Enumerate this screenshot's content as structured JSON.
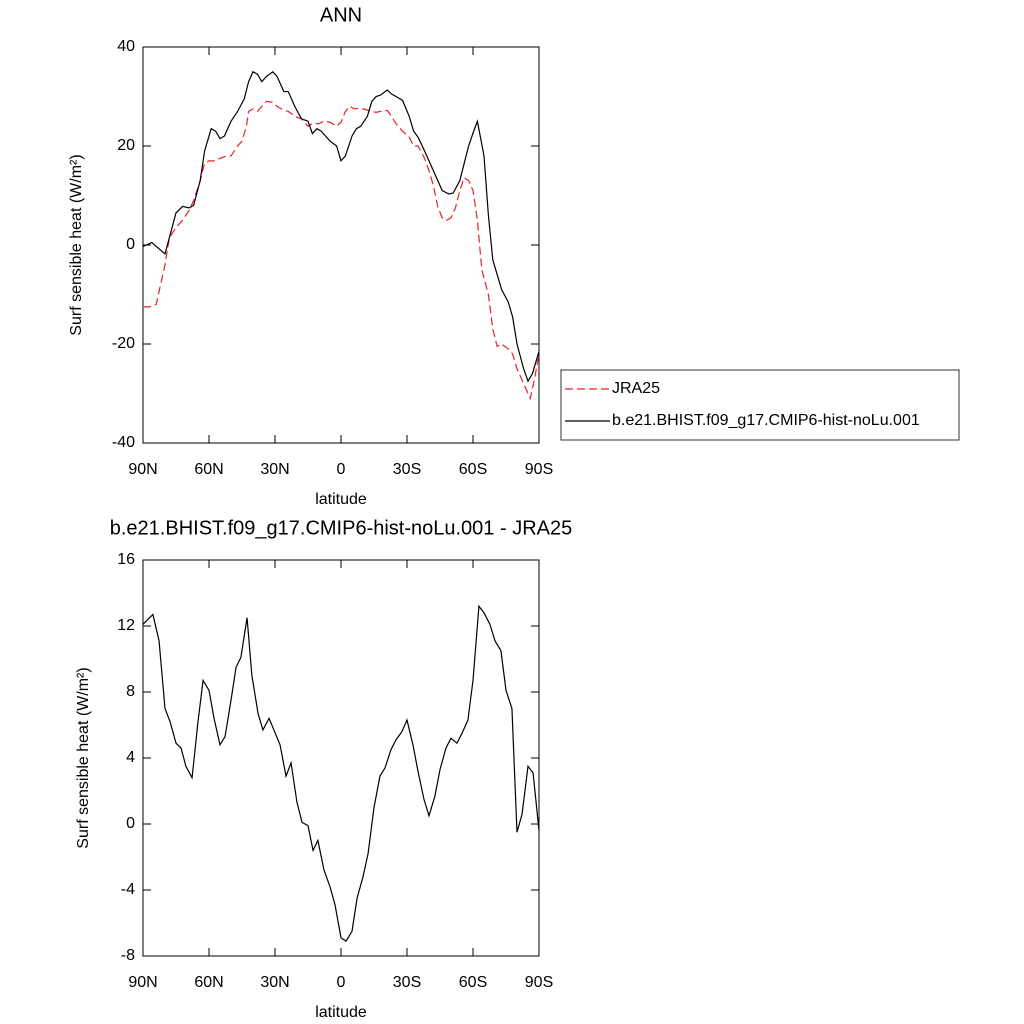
{
  "chart_data": [
    {
      "type": "line",
      "title": "ANN",
      "xlabel": "latitude",
      "ylabel": "Surf sensible heat (W/m²)",
      "xlim": [
        90,
        -90
      ],
      "ylim": [
        -40,
        40
      ],
      "xticks": [
        {
          "value": 90,
          "label": "90N"
        },
        {
          "value": 60,
          "label": "60N"
        },
        {
          "value": 30,
          "label": "30N"
        },
        0,
        {
          "value": -30,
          "label": "30S"
        },
        {
          "value": -60,
          "label": "60S"
        },
        {
          "value": -90,
          "label": "90S"
        }
      ],
      "yticks": [
        -40,
        -20,
        0,
        20,
        40
      ],
      "legend": "right",
      "series": [
        {
          "name": "JRA25",
          "color": "#e8202a",
          "dash": true,
          "x": [
            90,
            87,
            84,
            82,
            80,
            78,
            75,
            72,
            69,
            67,
            64,
            62,
            60,
            57,
            55,
            52,
            50,
            47,
            45,
            43,
            42,
            40,
            38,
            36,
            34,
            31,
            29,
            26,
            24,
            21,
            18,
            15,
            13,
            10,
            8,
            5,
            2,
            0,
            -2,
            -4,
            -6,
            -9,
            -11,
            -14,
            -16,
            -18,
            -21,
            -23,
            -25,
            -28,
            -31,
            -33,
            -35,
            -38,
            -40,
            -42,
            -44,
            -46,
            -48,
            -50,
            -52,
            -54,
            -56,
            -58,
            -60,
            -62,
            -64,
            -67,
            -69,
            -71,
            -73,
            -76,
            -78,
            -80,
            -82,
            -84,
            -86,
            -88,
            -90
          ],
          "values": [
            -12.5,
            -12.5,
            -12,
            -8,
            -4,
            1.5,
            3.5,
            5,
            7,
            9,
            13,
            16.5,
            17,
            17,
            17.5,
            18,
            18,
            20,
            21,
            24,
            27,
            27.5,
            27,
            28,
            29,
            28.8,
            28,
            27.2,
            27,
            26,
            25.5,
            24,
            24.5,
            24.5,
            25,
            24.8,
            24,
            24.8,
            27,
            28,
            27.5,
            27.6,
            27.4,
            27,
            26.8,
            27,
            27.2,
            26,
            24.5,
            23,
            21.8,
            20,
            20,
            17.5,
            15,
            12,
            7.7,
            5.5,
            5,
            5.5,
            7.5,
            11,
            13.6,
            13,
            11,
            5,
            -5,
            -10,
            -17,
            -20.5,
            -20,
            -21,
            -22,
            -25,
            -27,
            -29,
            -31,
            -27,
            -22
          ]
        },
        {
          "name": "b.e21.BHIST.f09_g17.CMIP6-hist-noLu.001",
          "color": "#000000",
          "dash": false,
          "x": [
            90,
            86,
            80,
            75,
            72,
            69,
            67,
            64,
            62,
            59,
            57,
            55,
            53,
            50,
            47,
            44,
            42,
            40,
            38,
            36,
            34,
            31,
            29,
            26,
            24,
            21,
            18,
            15,
            13,
            11,
            9,
            7,
            5,
            2,
            0,
            -2,
            -5,
            -7,
            -9,
            -12,
            -14,
            -16,
            -18,
            -21,
            -23,
            -25,
            -28,
            -31,
            -33,
            -35,
            -38,
            -40,
            -42,
            -44,
            -46,
            -49,
            -51,
            -54,
            -56,
            -58,
            -60,
            -62,
            -65,
            -67,
            -69,
            -71,
            -73,
            -76,
            -78,
            -80,
            -83,
            -85,
            -87,
            -90
          ],
          "values": [
            -0.3,
            0.5,
            -1.8,
            6.5,
            7.8,
            7.5,
            8,
            13,
            19,
            23.5,
            23,
            21.5,
            22,
            25,
            27,
            29.5,
            33,
            35,
            34.5,
            33,
            34,
            35,
            34,
            31,
            31,
            28,
            25.5,
            25,
            22.5,
            23.5,
            23,
            22,
            21,
            20,
            17,
            18,
            22,
            23.5,
            24,
            26,
            29,
            30,
            30.3,
            31.3,
            30.5,
            30,
            29.2,
            26,
            23,
            21.8,
            19,
            17,
            15,
            13,
            11,
            10.3,
            10.5,
            13,
            16.5,
            20,
            22.6,
            25,
            18,
            6,
            -3,
            -6,
            -9,
            -11.5,
            -14.5,
            -20,
            -25,
            -27.5,
            -26,
            -21.5
          ]
        }
      ]
    },
    {
      "type": "line",
      "title": "b.e21.BHIST.f09_g17.CMIP6-hist-noLu.001 - JRA25",
      "xlabel": "latitude",
      "ylabel": "Surf sensible heat (W/m²)",
      "xlim": [
        90,
        -90
      ],
      "ylim": [
        -8,
        16
      ],
      "xticks": [
        {
          "value": 90,
          "label": "90N"
        },
        {
          "value": 60,
          "label": "60N"
        },
        {
          "value": 30,
          "label": "30N"
        },
        0,
        {
          "value": -30,
          "label": "30S"
        },
        {
          "value": -60,
          "label": "60S"
        },
        {
          "value": -90,
          "label": "90S"
        }
      ],
      "yticks": [
        -8,
        -4,
        0,
        4,
        8,
        12,
        16
      ],
      "series": [
        {
          "color": "#000000",
          "dash": false,
          "x": [
            90,
            85.5,
            82.7,
            80,
            77.7,
            75,
            72.7,
            70.5,
            67.7,
            65,
            62.7,
            60,
            57.7,
            55,
            52.7,
            50,
            47.7,
            45.5,
            42.7,
            40.5,
            37.7,
            35.5,
            32.7,
            30.5,
            27.7,
            25,
            22.7,
            20,
            17.7,
            15,
            12.7,
            10.5,
            7.7,
            5,
            2.7,
            0,
            -2.3,
            -5,
            -7.3,
            -10,
            -12.3,
            -15,
            -17.7,
            -20,
            -22.7,
            -25,
            -27.7,
            -30,
            -32.7,
            -35,
            -37.7,
            -40,
            -42.7,
            -45,
            -47.7,
            -50,
            -52.7,
            -55,
            -57.7,
            -60,
            -62.7,
            -65,
            -67.7,
            -70,
            -72.7,
            -75,
            -77.7,
            -80,
            -82.3,
            -85,
            -87.3,
            -90
          ],
          "values": [
            12.1,
            12.7,
            11.1,
            7,
            6.2,
            4.9,
            4.6,
            3.5,
            2.8,
            6.2,
            8.7,
            8.1,
            6.4,
            4.8,
            5.3,
            7.5,
            9.5,
            10.1,
            12.5,
            9,
            6.7,
            5.7,
            6.4,
            5.7,
            4.8,
            2.9,
            3.7,
            1.3,
            0.1,
            -0.1,
            -1.6,
            -1,
            -2.8,
            -3.8,
            -4.9,
            -6.9,
            -7.1,
            -6.5,
            -4.5,
            -3.2,
            -1.8,
            1,
            2.9,
            3.4,
            4.5,
            5.1,
            5.6,
            6.3,
            4.8,
            3.2,
            1.5,
            0.5,
            1.7,
            3.3,
            4.6,
            5.2,
            4.9,
            5.5,
            6.3,
            8.7,
            13.2,
            12.8,
            12.1,
            11.1,
            10.5,
            8.1,
            7,
            -0.5,
            0.6,
            3.5,
            3.1,
            -0.4
          ]
        }
      ]
    }
  ]
}
